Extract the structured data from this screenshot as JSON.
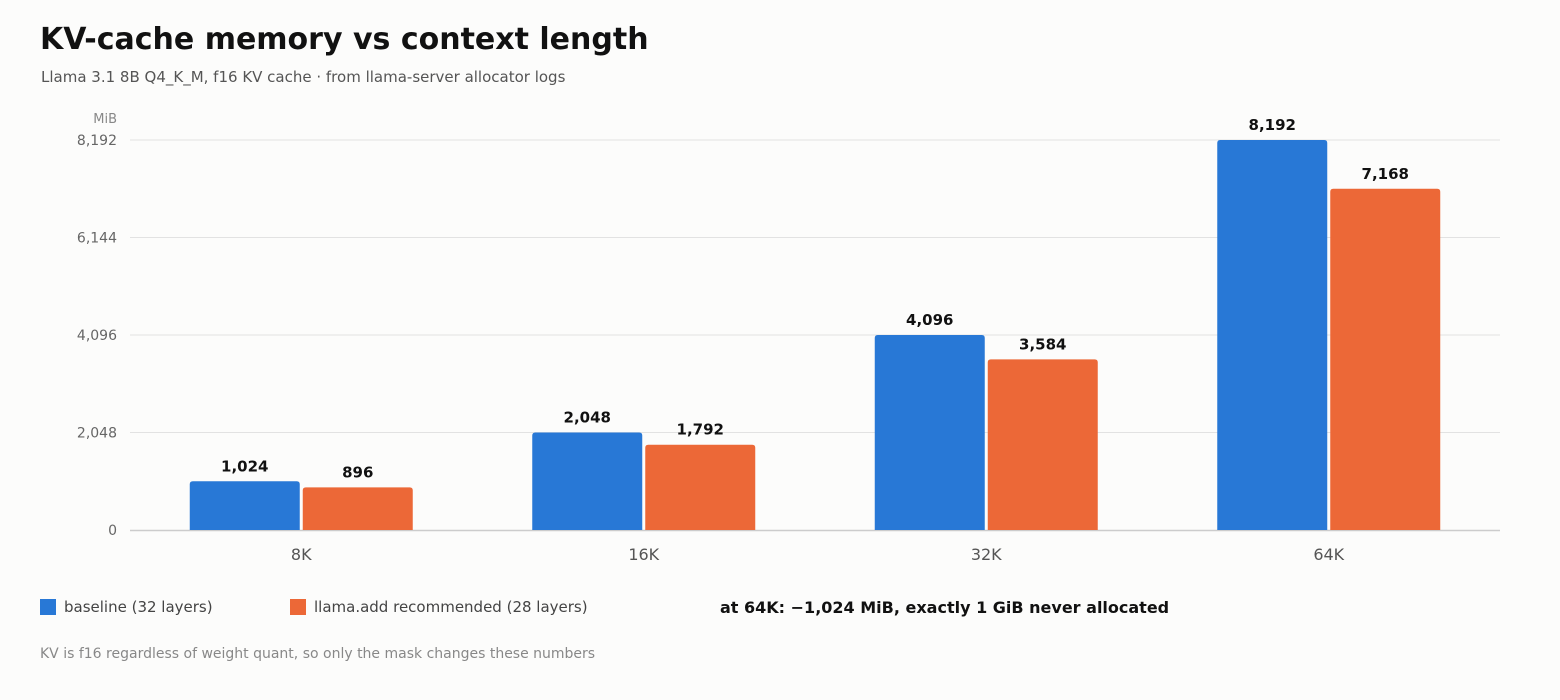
{
  "colors": {
    "baseline": "#2878d6",
    "recommended": "#ec6837",
    "grid": "#e2e2e2",
    "axis": "#cccccc",
    "tick": "#666666",
    "label": "#111111"
  },
  "chart_data": {
    "type": "bar",
    "title": "KV-cache memory vs context length",
    "subtitle": "Llama 3.1 8B Q4_K_M, f16 KV cache · from llama-server allocator logs",
    "ylabel": "MiB",
    "xlabel": "",
    "categories": [
      "8K",
      "16K",
      "32K",
      "64K"
    ],
    "series": [
      {
        "name": "baseline (32 layers)",
        "values": [
          1024,
          2048,
          4096,
          8192
        ]
      },
      {
        "name": "llama.add recommended (28 layers)",
        "values": [
          896,
          1792,
          3584,
          7168
        ]
      }
    ],
    "value_labels": [
      [
        "1,024",
        "2,048",
        "4,096",
        "8,192"
      ],
      [
        "896",
        "1,792",
        "3,584",
        "7,168"
      ]
    ],
    "ylim": [
      0,
      8192
    ],
    "yticks": [
      0,
      2048,
      4096,
      6144,
      8192
    ],
    "ytick_labels": [
      "0",
      "2,048",
      "4,096",
      "6,144",
      "8,192"
    ],
    "grid": true,
    "legend": "bottom-left",
    "annotation": "at 64K: −1,024 MiB, exactly 1 GiB never allocated",
    "footnote": "KV is f16 regardless of weight quant, so only the mask changes these numbers"
  }
}
